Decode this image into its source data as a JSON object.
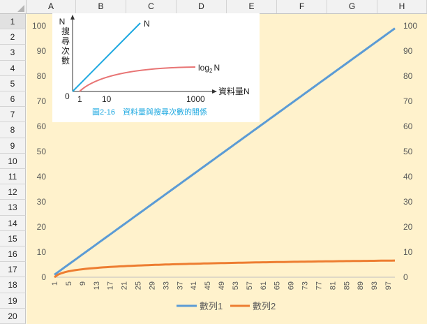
{
  "spreadsheet": {
    "columns": [
      "A",
      "B",
      "C",
      "D",
      "E",
      "F",
      "G",
      "H"
    ],
    "rows": [
      "1",
      "2",
      "3",
      "4",
      "5",
      "6",
      "7",
      "8",
      "9",
      "10",
      "11",
      "12",
      "13",
      "14",
      "15",
      "16",
      "17",
      "18",
      "19",
      "20"
    ]
  },
  "inset_figure": {
    "y_axis_chars": [
      "N",
      "搜",
      "尋",
      "次",
      "數"
    ],
    "line_label_n": "N",
    "line_label_log_base": "log",
    "line_label_log_sub": "2",
    "line_label_log_suffix": "N",
    "x_origin": "0",
    "x_ticks": [
      "1",
      "10",
      "1000"
    ],
    "x_axis_label": "資料量N",
    "caption": "圖2-16　資料量與搜尋次數的關係",
    "colors": {
      "n_line": "#1da8e0",
      "log_line": "#e87474",
      "caption": "#1da8e0",
      "axis": "#333333"
    }
  },
  "chart_data": {
    "type": "line",
    "x_start": 1,
    "x_end": 99,
    "x_tick_labels": [
      "1",
      "5",
      "9",
      "13",
      "17",
      "21",
      "25",
      "29",
      "33",
      "37",
      "41",
      "45",
      "49",
      "53",
      "57",
      "61",
      "65",
      "69",
      "73",
      "77",
      "81",
      "85",
      "89",
      "93",
      "97"
    ],
    "y_tick_labels": [
      "0",
      "10",
      "20",
      "30",
      "40",
      "50",
      "60",
      "70",
      "80",
      "90",
      "100"
    ],
    "ylim": [
      0,
      100
    ],
    "grid": false,
    "secondary_axis_right": true,
    "legend_position": "bottom",
    "series": [
      {
        "name": "數列1",
        "color": "#5b9bd5",
        "formula": "y = x",
        "values_start": 1,
        "values_end": 99
      },
      {
        "name": "數列2",
        "color": "#ed7d31",
        "formula": "y = log2(x)",
        "values_start": 0,
        "values_end": 6.63
      }
    ]
  }
}
